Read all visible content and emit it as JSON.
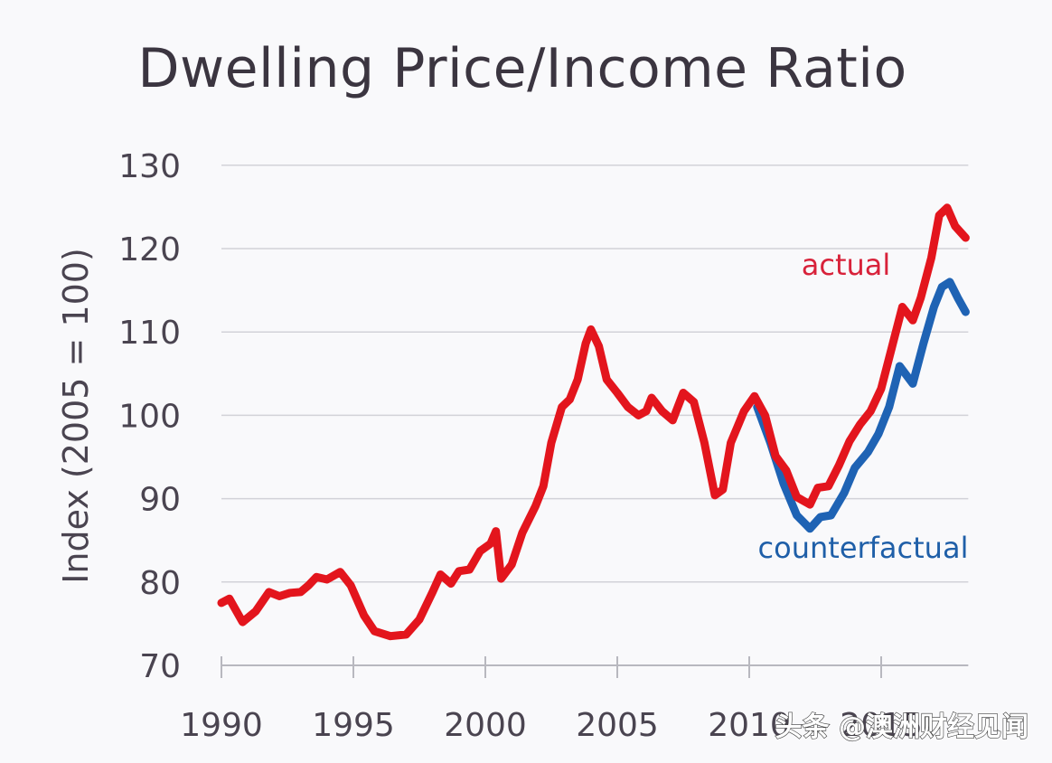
{
  "chart_data": {
    "type": "line",
    "title": "Dwelling Price/Income Ratio",
    "xlabel": "",
    "ylabel": "Index (2005 = 100)",
    "xlim": [
      1990,
      2018.3
    ],
    "ylim": [
      70,
      130
    ],
    "x_ticks": [
      1990,
      1995,
      2000,
      2005,
      2010,
      2015
    ],
    "x_tick_labels": [
      "1990",
      "1995",
      "2000",
      "2005",
      "2010",
      "2015"
    ],
    "y_ticks": [
      70,
      80,
      90,
      100,
      110,
      120,
      130
    ],
    "y_tick_labels": [
      "70",
      "80",
      "90",
      "100",
      "110",
      "120",
      "130"
    ],
    "grid": "horizontal",
    "legend": "inline labels near line ends (right side)",
    "series": [
      {
        "name": "actual",
        "label": "actual",
        "color": "#e3151d",
        "x": [
          1990.0,
          1990.3,
          1990.8,
          1991.3,
          1991.8,
          1992.2,
          1992.6,
          1993.0,
          1993.3,
          1993.6,
          1994.0,
          1994.5,
          1994.9,
          1995.4,
          1995.8,
          1996.4,
          1997.0,
          1997.5,
          1998.0,
          1998.3,
          1998.7,
          1999.0,
          1999.4,
          1999.8,
          2000.2,
          2000.4,
          2000.6,
          2001.0,
          2001.4,
          2001.9,
          2002.2,
          2002.5,
          2002.9,
          2003.2,
          2003.5,
          2003.8,
          2004.0,
          2004.3,
          2004.6,
          2005.0,
          2005.4,
          2005.8,
          2006.1,
          2006.3,
          2006.7,
          2007.1,
          2007.5,
          2007.9,
          2008.3,
          2008.7,
          2009.0,
          2009.3,
          2009.8,
          2010.2,
          2010.6,
          2011.0,
          2011.4,
          2011.8,
          2012.3,
          2012.6,
          2013.0,
          2013.4,
          2013.8,
          2014.2,
          2014.6,
          2015.0,
          2015.4,
          2015.8,
          2016.2,
          2016.5,
          2016.9,
          2017.2,
          2017.5,
          2017.8,
          2018.2
        ],
        "values": [
          77.5,
          78,
          75.2,
          76.5,
          78.8,
          78.3,
          78.7,
          78.8,
          79.6,
          80.6,
          80.3,
          81.2,
          79.6,
          76,
          74.1,
          73.5,
          73.7,
          75.5,
          78.8,
          80.9,
          79.8,
          81.3,
          81.5,
          83.7,
          84.6,
          86.1,
          80.4,
          82.1,
          85.9,
          89.1,
          91.5,
          96.7,
          101,
          101.9,
          104.3,
          108.6,
          110.3,
          108.3,
          104.3,
          102.7,
          101,
          100,
          100.5,
          102.1,
          100.5,
          99.4,
          102.7,
          101.6,
          96.7,
          90.4,
          91.1,
          96.7,
          100.5,
          102.3,
          100,
          95.1,
          93.4,
          90.2,
          89.3,
          91.3,
          91.5,
          94,
          96.9,
          98.9,
          100.5,
          103.2,
          108.1,
          113,
          111.4,
          114.1,
          118.9,
          124,
          124.9,
          122.7,
          121.3
        ]
      },
      {
        "name": "counterfactual",
        "label": "counterfactual",
        "color": "#1f63b4",
        "x": [
          2010.3,
          2010.8,
          2011.3,
          2011.8,
          2012.3,
          2012.7,
          2013.1,
          2013.6,
          2014.0,
          2014.5,
          2014.9,
          2015.3,
          2015.7,
          2016.2,
          2016.6,
          2017.0,
          2017.3,
          2017.6,
          2017.9,
          2018.2
        ],
        "values": [
          101,
          96.7,
          91.8,
          88,
          86.4,
          87.8,
          88,
          90.7,
          93.7,
          95.6,
          97.8,
          101,
          105.9,
          103.8,
          108.6,
          113,
          115.4,
          116,
          114.1,
          112.4
        ]
      }
    ],
    "annotations": [
      "actual",
      "counterfactual"
    ]
  },
  "watermark": "头条 @澳洲财经见闻"
}
